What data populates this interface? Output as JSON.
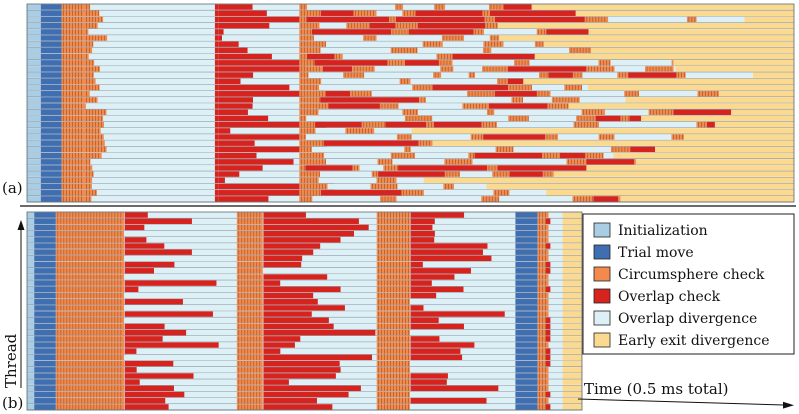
{
  "chart_data": [
    {
      "type": "timeline",
      "panel_label": "(a)",
      "thread_count": 32,
      "time_span": [
        0,
        1
      ],
      "description": "Per-thread activity over time; each row is one GPU thread",
      "common_segments": [
        {
          "state": "init",
          "start": 0.0,
          "end": 0.018
        },
        {
          "state": "trial",
          "start": 0.018,
          "end": 0.045
        },
        {
          "state": "circum",
          "start": 0.045,
          "end": 0.075
        }
      ]
    },
    {
      "type": "timeline",
      "panel_label": "(b)",
      "thread_count": 32,
      "time_span": [
        0,
        1
      ],
      "description": "Per-thread activity over time after reordering; each row is one GPU thread",
      "common_segments": [
        {
          "state": "init",
          "start": 0.0,
          "end": 0.013
        },
        {
          "state": "trial",
          "start": 0.013,
          "end": 0.052
        },
        {
          "state": "circum",
          "start": 0.052,
          "end": 0.175
        },
        {
          "state": "overlap_div",
          "start": 0.175,
          "end": 0.378
        },
        {
          "state": "circum",
          "start": 0.378,
          "end": 0.425
        },
        {
          "state": "overlap_div",
          "start": 0.425,
          "end": 0.63
        },
        {
          "state": "circum",
          "start": 0.63,
          "end": 0.69
        },
        {
          "state": "overlap_div",
          "start": 0.69,
          "end": 0.88
        },
        {
          "state": "trial",
          "start": 0.88,
          "end": 0.92
        },
        {
          "state": "circum",
          "start": 0.92,
          "end": 0.94
        },
        {
          "state": "overlap_div",
          "start": 0.94,
          "end": 0.965
        },
        {
          "state": "early_exit",
          "start": 0.965,
          "end": 1.0
        }
      ]
    }
  ],
  "legend": [
    {
      "key": "init",
      "label": "Initialization",
      "color": "#a9cde3"
    },
    {
      "key": "trial",
      "label": "Trial move",
      "color": "#3f6fb0"
    },
    {
      "key": "circum",
      "label": "Circumsphere check",
      "color": "#f28a4e"
    },
    {
      "key": "overlap",
      "label": "Overlap check",
      "color": "#d7231e"
    },
    {
      "key": "overlap_div",
      "label": "Overlap divergence",
      "color": "#dcf0f6"
    },
    {
      "key": "early_exit",
      "label": "Early exit divergence",
      "color": "#fbd98f"
    }
  ],
  "axes": {
    "y_label": "Thread",
    "x_label": "Time (0.5 ms total)"
  }
}
